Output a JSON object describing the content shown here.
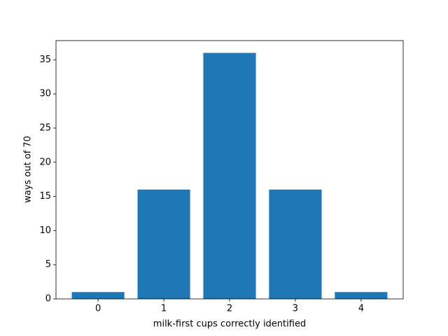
{
  "chart_data": {
    "type": "bar",
    "x": [
      0,
      1,
      2,
      3,
      4
    ],
    "values": [
      1,
      16,
      36,
      16,
      1
    ],
    "color": "#1f77b4",
    "xlabel": "milk-first cups correctly identified",
    "ylabel": "ways out of 70",
    "xlim": [
      -0.64,
      4.64
    ],
    "xticks": [
      0,
      1,
      2,
      3,
      4
    ],
    "ylim": [
      0,
      37.8
    ],
    "yticks": [
      0,
      5,
      10,
      15,
      20,
      25,
      30,
      35
    ],
    "grid": false
  }
}
